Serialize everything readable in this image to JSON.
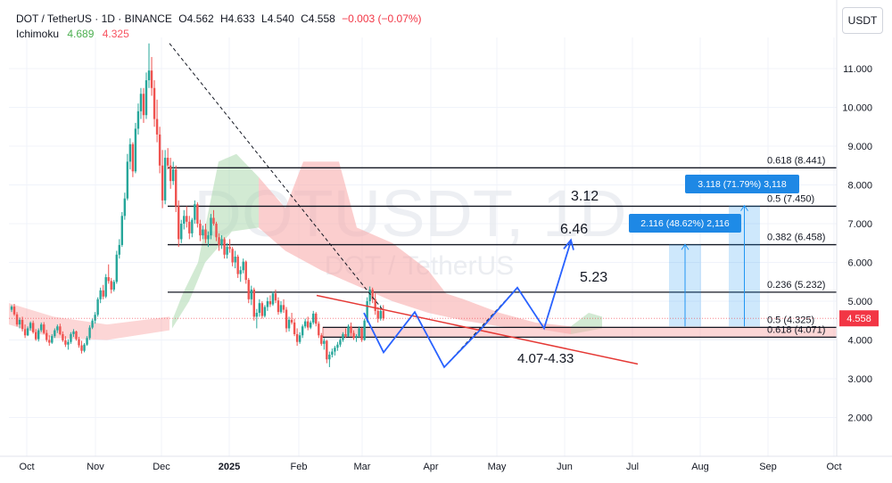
{
  "header": {
    "symbol": "DOT / TetherUS · 1D · BINANCE",
    "open": "O4.562",
    "high": "H4.633",
    "low": "L4.540",
    "close": "C4.558",
    "change": "−0.003 (−0.07%)",
    "indicator": "Ichimoku",
    "ind_v1": "4.689",
    "ind_v2": "4.325"
  },
  "currency_button": "USDT",
  "colors": {
    "up": "#26a69a",
    "down": "#ef5350",
    "bull_cloud": "#a5d6a7",
    "bear_cloud": "#f8a5a5",
    "pattern": "#2962ff",
    "trendline": "#e53935",
    "price_tag": "#f23645",
    "measure": "#2196f3"
  },
  "chart_data": {
    "type": "candlestick",
    "watermark": "DOTUSDT, 1D",
    "watermark_sub": "DOT / TetherUS",
    "y_ticks": [
      "11.000",
      "10.000",
      "9.000",
      "8.000",
      "7.000",
      "6.000",
      "5.000",
      "4.000",
      "3.000",
      "2.000"
    ],
    "x_ticks": [
      "Oct",
      "Nov",
      "Dec",
      "2025",
      "Feb",
      "Mar",
      "Apr",
      "May",
      "Jun",
      "Jul",
      "Aug",
      "Sep",
      "Oct"
    ],
    "last_price": "4.558",
    "fib_levels": [
      {
        "ratio": 0.618,
        "price": 8.441,
        "label": "0.618 (8.441)"
      },
      {
        "ratio": 0.5,
        "price": 7.45,
        "label": "0.5 (7.450)"
      },
      {
        "ratio": 0.382,
        "price": 6.458,
        "label": "0.382 (6.458)"
      },
      {
        "ratio": 0.236,
        "price": 5.232,
        "label": "0.236 (5.232)"
      },
      {
        "ratio": 0.5,
        "price": 4.325,
        "label": "0.5 (4.325)"
      },
      {
        "ratio": 0.618,
        "price": 4.071,
        "label": "0.618 (4.071)"
      }
    ],
    "annotations": [
      "3.12",
      "6.46",
      "5.23",
      "4.07-4.33"
    ],
    "measure_boxes": [
      {
        "label": "2.116 (48.62%) 2,116",
        "from": 4.35,
        "to": 6.466
      },
      {
        "label": "3.118 (71.79%) 3,118",
        "from": 4.35,
        "to": 7.468
      }
    ],
    "support_zone": [
      4.071,
      4.325
    ],
    "candles": [
      [
        4.78,
        4.9,
        4.72,
        4.86
      ],
      [
        4.86,
        4.93,
        4.62,
        4.66
      ],
      [
        4.66,
        4.72,
        4.35,
        4.4
      ],
      [
        4.4,
        4.58,
        4.3,
        4.52
      ],
      [
        4.52,
        4.6,
        4.22,
        4.28
      ],
      [
        4.28,
        4.4,
        4.05,
        4.12
      ],
      [
        4.12,
        4.35,
        4.1,
        4.3
      ],
      [
        4.3,
        4.48,
        4.24,
        4.44
      ],
      [
        4.44,
        4.5,
        4.16,
        4.2
      ],
      [
        4.2,
        4.28,
        3.98,
        4.02
      ],
      [
        4.02,
        4.3,
        3.96,
        4.25
      ],
      [
        4.25,
        4.45,
        4.2,
        4.4
      ],
      [
        4.4,
        4.46,
        4.15,
        4.18
      ],
      [
        4.18,
        4.26,
        3.95,
        4.0
      ],
      [
        4.0,
        4.12,
        3.85,
        3.93
      ],
      [
        3.93,
        4.15,
        3.9,
        4.1
      ],
      [
        4.1,
        4.3,
        4.05,
        4.25
      ],
      [
        4.25,
        4.4,
        4.18,
        4.35
      ],
      [
        4.35,
        4.42,
        4.12,
        4.15
      ],
      [
        4.15,
        4.22,
        3.95,
        3.99
      ],
      [
        3.99,
        4.1,
        3.82,
        3.88
      ],
      [
        3.88,
        4.02,
        3.75,
        3.95
      ],
      [
        3.95,
        4.2,
        3.9,
        4.15
      ],
      [
        4.15,
        4.28,
        4.08,
        4.22
      ],
      [
        4.22,
        4.24,
        3.98,
        4.02
      ],
      [
        4.02,
        4.08,
        3.8,
        3.86
      ],
      [
        3.86,
        3.98,
        3.65,
        3.72
      ],
      [
        3.72,
        3.92,
        3.68,
        3.88
      ],
      [
        3.88,
        4.1,
        3.85,
        4.05
      ],
      [
        4.05,
        4.38,
        4.0,
        4.32
      ],
      [
        4.32,
        4.55,
        4.28,
        4.5
      ],
      [
        4.5,
        4.72,
        4.42,
        4.65
      ],
      [
        4.65,
        5.1,
        4.6,
        5.05
      ],
      [
        5.05,
        5.35,
        4.95,
        5.28
      ],
      [
        5.28,
        5.42,
        5.05,
        5.12
      ],
      [
        5.12,
        5.7,
        5.08,
        5.62
      ],
      [
        5.62,
        5.95,
        5.45,
        5.52
      ],
      [
        5.52,
        5.6,
        5.2,
        5.3
      ],
      [
        5.3,
        5.55,
        5.25,
        5.5
      ],
      [
        5.5,
        6.3,
        5.45,
        6.2
      ],
      [
        6.2,
        6.6,
        6.1,
        6.45
      ],
      [
        6.45,
        7.3,
        6.4,
        7.2
      ],
      [
        7.2,
        7.8,
        7.1,
        7.65
      ],
      [
        7.65,
        8.8,
        7.6,
        8.6
      ],
      [
        8.6,
        9.2,
        8.4,
        9.05
      ],
      [
        9.05,
        9.1,
        8.2,
        8.35
      ],
      [
        8.35,
        9.6,
        8.3,
        9.45
      ],
      [
        9.45,
        10.1,
        9.3,
        9.9
      ],
      [
        9.9,
        10.5,
        9.7,
        10.35
      ],
      [
        10.35,
        10.5,
        9.6,
        9.8
      ],
      [
        9.8,
        10.9,
        9.7,
        10.7
      ],
      [
        10.7,
        11.65,
        10.5,
        10.95
      ],
      [
        10.95,
        11.3,
        10.3,
        10.5
      ],
      [
        10.5,
        10.7,
        9.5,
        9.7
      ],
      [
        9.7,
        10.2,
        9.1,
        9.3
      ],
      [
        9.3,
        9.5,
        8.3,
        8.5
      ],
      [
        8.5,
        8.9,
        7.4,
        7.6
      ],
      [
        7.6,
        8.9,
        7.5,
        8.7
      ],
      [
        8.7,
        8.95,
        8.4,
        8.5
      ],
      [
        8.5,
        8.7,
        7.9,
        8.1
      ],
      [
        8.1,
        8.6,
        8.0,
        8.4
      ],
      [
        8.4,
        8.5,
        7.3,
        7.45
      ],
      [
        7.45,
        7.6,
        6.4,
        6.6
      ],
      [
        6.6,
        7.1,
        6.5,
        7.0
      ],
      [
        7.0,
        7.35,
        6.85,
        7.2
      ],
      [
        7.2,
        7.45,
        6.9,
        7.05
      ],
      [
        7.05,
        7.2,
        6.6,
        6.75
      ],
      [
        6.75,
        7.15,
        6.65,
        7.1
      ],
      [
        7.1,
        7.6,
        7.0,
        7.5
      ],
      [
        7.5,
        7.55,
        6.9,
        7.0
      ],
      [
        7.0,
        7.1,
        6.55,
        6.7
      ],
      [
        6.7,
        6.95,
        6.6,
        6.85
      ],
      [
        6.85,
        7.0,
        6.5,
        6.6
      ],
      [
        6.6,
        6.8,
        6.4,
        6.7
      ],
      [
        6.7,
        7.25,
        6.6,
        7.15
      ],
      [
        7.15,
        7.35,
        6.95,
        7.0
      ],
      [
        7.0,
        7.05,
        6.55,
        6.65
      ],
      [
        6.65,
        6.75,
        6.3,
        6.45
      ],
      [
        6.45,
        6.7,
        6.35,
        6.6
      ],
      [
        6.6,
        6.65,
        6.1,
        6.2
      ],
      [
        6.2,
        6.5,
        6.1,
        6.4
      ],
      [
        6.4,
        6.6,
        6.25,
        6.35
      ],
      [
        6.35,
        6.4,
        5.9,
        6.0
      ],
      [
        6.0,
        6.3,
        5.85,
        6.15
      ],
      [
        6.15,
        6.2,
        5.6,
        5.7
      ],
      [
        5.7,
        5.9,
        5.5,
        5.8
      ],
      [
        5.8,
        6.1,
        5.72,
        6.02
      ],
      [
        6.02,
        6.05,
        5.45,
        5.55
      ],
      [
        5.55,
        5.6,
        4.95,
        5.05
      ],
      [
        5.05,
        5.4,
        4.9,
        5.3
      ],
      [
        5.3,
        5.35,
        4.5,
        4.6
      ],
      [
        4.6,
        4.8,
        4.3,
        4.7
      ],
      [
        4.7,
        5.05,
        4.6,
        4.95
      ],
      [
        4.95,
        5.0,
        4.55,
        4.62
      ],
      [
        4.62,
        4.9,
        4.58,
        4.85
      ],
      [
        4.85,
        5.1,
        4.75,
        5.0
      ],
      [
        5.0,
        5.15,
        4.85,
        4.92
      ],
      [
        4.92,
        5.25,
        4.88,
        5.2
      ],
      [
        5.2,
        5.3,
        4.95,
        5.02
      ],
      [
        5.02,
        5.1,
        4.65,
        4.72
      ],
      [
        4.72,
        5.0,
        4.68,
        4.9
      ],
      [
        4.9,
        5.05,
        4.7,
        4.78
      ],
      [
        4.78,
        4.85,
        4.2,
        4.3
      ],
      [
        4.3,
        4.6,
        4.22,
        4.52
      ],
      [
        4.52,
        4.7,
        4.4,
        4.45
      ],
      [
        4.45,
        4.55,
        4.1,
        4.15
      ],
      [
        4.15,
        4.3,
        3.85,
        3.95
      ],
      [
        3.95,
        4.2,
        3.9,
        4.12
      ],
      [
        4.12,
        4.4,
        4.05,
        4.35
      ],
      [
        4.35,
        4.55,
        4.3,
        4.48
      ],
      [
        4.48,
        4.6,
        4.25,
        4.32
      ],
      [
        4.32,
        4.5,
        4.28,
        4.45
      ],
      [
        4.45,
        4.75,
        4.4,
        4.68
      ],
      [
        4.68,
        4.72,
        4.35,
        4.42
      ],
      [
        4.42,
        4.48,
        4.05,
        4.12
      ],
      [
        4.12,
        4.18,
        3.85,
        3.9
      ],
      [
        3.9,
        4.05,
        3.75,
        3.98
      ],
      [
        3.98,
        4.0,
        3.4,
        3.5
      ],
      [
        3.5,
        3.7,
        3.3,
        3.62
      ],
      [
        3.62,
        3.78,
        3.55,
        3.7
      ],
      [
        3.7,
        3.85,
        3.6,
        3.8
      ],
      [
        3.8,
        3.95,
        3.72,
        3.88
      ],
      [
        3.88,
        4.05,
        3.82,
        4.0
      ],
      [
        4.0,
        4.2,
        3.95,
        4.15
      ],
      [
        4.15,
        4.3,
        4.05,
        4.1
      ],
      [
        4.1,
        4.4,
        4.08,
        4.35
      ],
      [
        4.35,
        4.45,
        4.1,
        4.18
      ],
      [
        4.18,
        4.25,
        4.0,
        4.05
      ],
      [
        4.05,
        4.15,
        3.95,
        4.1
      ],
      [
        4.1,
        4.35,
        4.05,
        4.3
      ],
      [
        4.3,
        4.32,
        3.95,
        4.0
      ],
      [
        4.0,
        4.55,
        3.98,
        4.5
      ],
      [
        4.5,
        5.1,
        4.45,
        5.0
      ],
      [
        5.0,
        5.38,
        4.9,
        5.3
      ],
      [
        5.3,
        5.35,
        4.95,
        5.05
      ],
      [
        5.05,
        5.2,
        4.65,
        4.75
      ],
      [
        4.75,
        4.85,
        4.45,
        4.55
      ],
      [
        4.55,
        4.9,
        4.5,
        4.75
      ],
      [
        4.75,
        4.9,
        4.5,
        4.56
      ]
    ]
  }
}
